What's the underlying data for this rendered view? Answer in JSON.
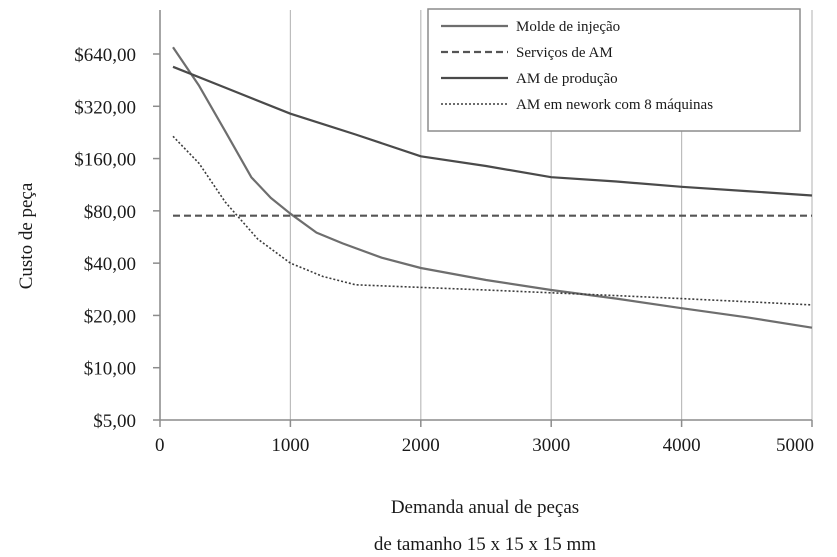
{
  "chart_data": {
    "type": "line",
    "title": "",
    "xlabel_lines": [
      "Demanda anual de peças",
      "de tamanho 15 x 15 x 15 mm"
    ],
    "ylabel": "Custo de peça",
    "x_ticks": [
      "0",
      "1000",
      "2000",
      "3000",
      "4000",
      "5000"
    ],
    "y_ticks": [
      "$5,00",
      "$10,00",
      "$20,00",
      "$40,00",
      "$80,00",
      "$160,00",
      "$320,00",
      "$640,00"
    ],
    "xlim": [
      0,
      5000
    ],
    "ylim": [
      5,
      1100
    ],
    "y_scale": "log",
    "grid": "vertical",
    "legend_position": "top-right",
    "series": [
      {
        "name": "Molde de injeção",
        "style": "solid",
        "color": "#6e6e6e",
        "x": [
          100,
          300,
          500,
          700,
          850,
          1000,
          1200,
          1400,
          1700,
          2000,
          2500,
          3000,
          3500,
          4000,
          4500,
          5000
        ],
        "y": [
          700,
          420,
          230,
          125,
          95,
          77,
          60,
          52,
          43,
          37.5,
          32,
          28,
          25,
          22,
          19.5,
          17
        ]
      },
      {
        "name": "Serviços de AM",
        "style": "dashed",
        "color": "#555555",
        "x": [
          100,
          5000
        ],
        "y": [
          75,
          75
        ]
      },
      {
        "name": "AM de produção",
        "style": "solid",
        "color": "#4a4a4a",
        "x": [
          100,
          500,
          1000,
          1500,
          2000,
          2500,
          3000,
          3500,
          4000,
          4500,
          5000
        ],
        "y": [
          540,
          410,
          290,
          220,
          165,
          145,
          125,
          118,
          110,
          104,
          98
        ]
      },
      {
        "name": "AM em nework com 8 máquinas",
        "style": "dotted",
        "color": "#3c3c3c",
        "x": [
          100,
          300,
          500,
          750,
          1000,
          1250,
          1500,
          2000,
          2500,
          3000,
          3500,
          4000,
          4500,
          5000
        ],
        "y": [
          215,
          150,
          90,
          55,
          40,
          33.5,
          30,
          29,
          28,
          27,
          26,
          25,
          24,
          23
        ]
      }
    ]
  }
}
